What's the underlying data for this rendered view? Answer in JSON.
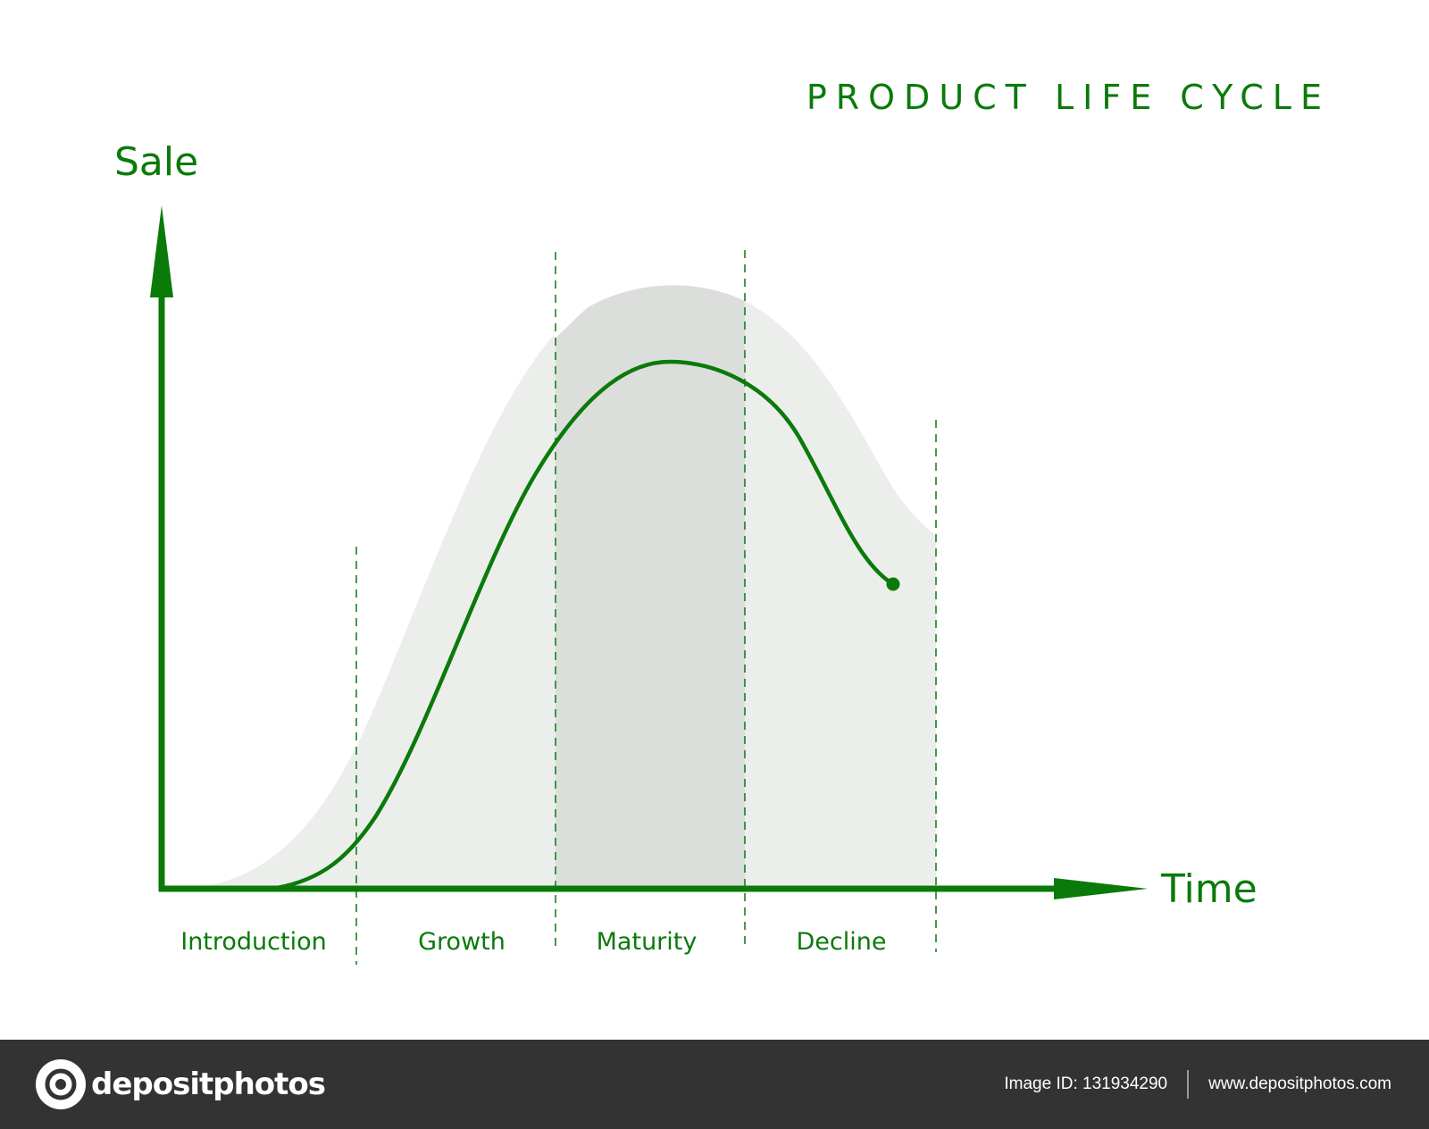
{
  "diagram": {
    "title": "PRODUCT LIFE CYCLE",
    "y_axis_label": "Sale",
    "x_axis_label": "Time",
    "stages": [
      {
        "label": "Introduction"
      },
      {
        "label": "Growth"
      },
      {
        "label": "Maturity"
      },
      {
        "label": "Decline"
      }
    ]
  },
  "colors": {
    "primary": "#0a7a0a",
    "shade_light": "#eceeec",
    "shade_dark": "#dcdedc",
    "footer": "#333333"
  },
  "footer": {
    "brand": "depositphotos",
    "image_id": "Image ID: 131934290",
    "url": "www.depositphotos.com"
  }
}
